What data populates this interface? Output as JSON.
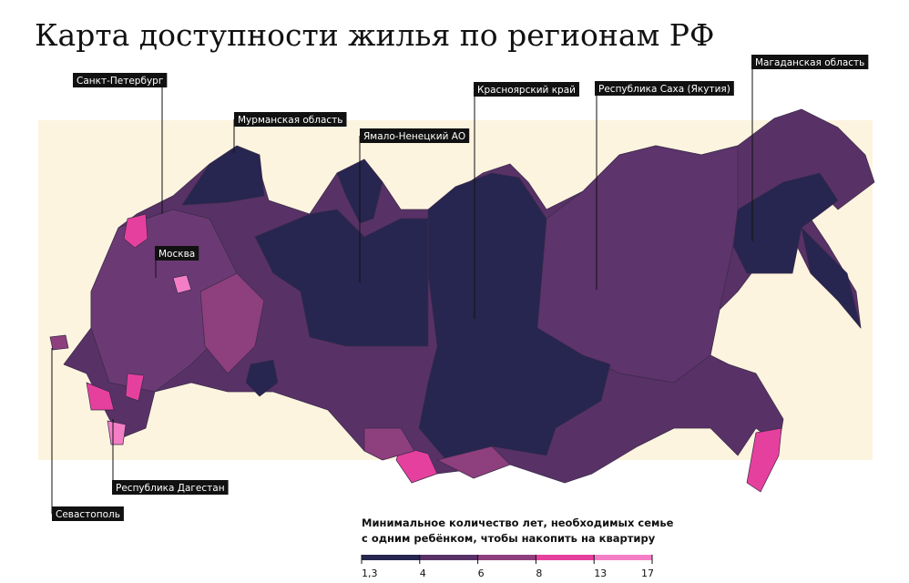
{
  "title": "Карта доступности жилья по регионам РФ",
  "callouts": [
    {
      "label": "Санкт-Петербург"
    },
    {
      "label": "Мурманская область"
    },
    {
      "label": "Ямало-Ненецкий АО"
    },
    {
      "label": "Красноярский край"
    },
    {
      "label": "Республика Саха (Якутия)"
    },
    {
      "label": "Магаданская область"
    },
    {
      "label": "Москва"
    },
    {
      "label": "Республика Дагестан"
    },
    {
      "label": "Севастополь"
    }
  ],
  "legend": {
    "title": [
      "Минимальное количество лет, необходимых семье",
      "с одним ребёнком, чтобы накопить на квартиру"
    ],
    "colors": [
      "#262650",
      "#583266",
      "#8e3f7d",
      "#e6409e",
      "#f47ec6"
    ],
    "ticks": [
      {
        "value": 1.3,
        "label": "1,3"
      },
      4,
      6,
      8,
      13,
      17
    ]
  }
}
